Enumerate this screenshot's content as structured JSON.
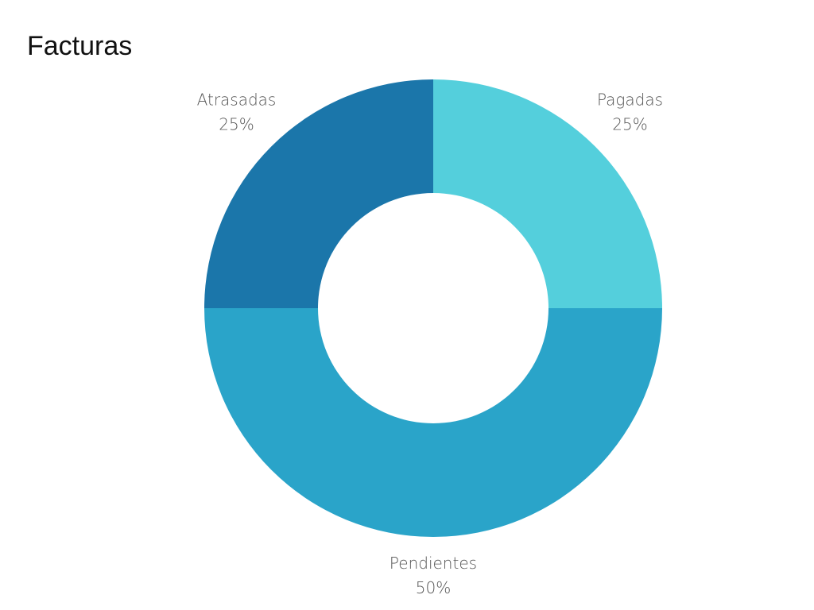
{
  "chart_data": {
    "type": "pie",
    "title": "Facturas",
    "donut": true,
    "start_angle_deg": 0,
    "direction": "clockwise",
    "legend": "none",
    "slices": [
      {
        "label": "Pagadas",
        "value": 25,
        "value_label": "25%",
        "color": "#54CFDC"
      },
      {
        "label": "Pendientes",
        "value": 50,
        "value_label": "50%",
        "color": "#2AA4C9"
      },
      {
        "label": "Atrasadas",
        "value": 25,
        "value_label": "25%",
        "color": "#1B76AA"
      }
    ]
  }
}
